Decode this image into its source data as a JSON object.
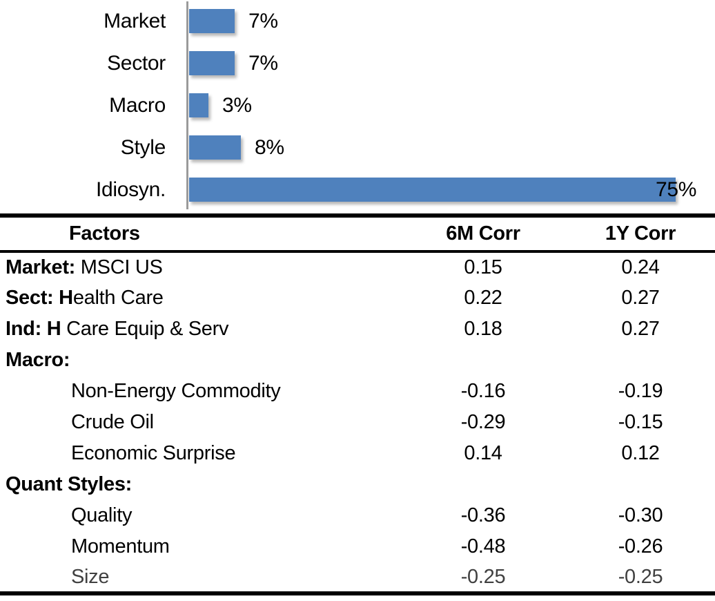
{
  "chart_data": [
    {
      "type": "bar",
      "orientation": "horizontal",
      "title": "",
      "categories": [
        "Market",
        "Sector",
        "Macro",
        "Style",
        "Idiosyn."
      ],
      "values": [
        7,
        7,
        3,
        8,
        75
      ],
      "value_labels": [
        "7%",
        "7%",
        "3%",
        "8%",
        "75%"
      ],
      "unit": "percent",
      "xlim": [
        0,
        80
      ],
      "grid": false,
      "legend": false,
      "bar_color": "#4F81BD",
      "axis_line_color": "#9A9A9A",
      "label_color": "#000000"
    },
    {
      "type": "table",
      "headers": [
        "Factors",
        "6M Corr",
        "1Y Corr"
      ],
      "rows": [
        {
          "factor_bold": "Market:",
          "factor_rest": " MSCI US",
          "indent": false,
          "muted": false,
          "corr_6m": "0.15",
          "corr_1y": "0.24"
        },
        {
          "factor_bold": "Sect: H",
          "factor_rest": "ealth Care",
          "indent": false,
          "muted": false,
          "corr_6m": "0.22",
          "corr_1y": "0.27"
        },
        {
          "factor_bold": "Ind: H",
          "factor_rest": " Care Equip & Serv",
          "indent": false,
          "muted": false,
          "corr_6m": "0.18",
          "corr_1y": "0.27"
        },
        {
          "factor_bold": "Macro:",
          "factor_rest": "",
          "indent": false,
          "muted": false,
          "corr_6m": "",
          "corr_1y": ""
        },
        {
          "factor_bold": "",
          "factor_rest": "Non-Energy Commodity",
          "indent": true,
          "muted": false,
          "corr_6m": "-0.16",
          "corr_1y": "-0.19"
        },
        {
          "factor_bold": "",
          "factor_rest": "Crude Oil",
          "indent": true,
          "muted": false,
          "corr_6m": "-0.29",
          "corr_1y": "-0.15"
        },
        {
          "factor_bold": "",
          "factor_rest": "Economic Surprise",
          "indent": true,
          "muted": false,
          "corr_6m": "0.14",
          "corr_1y": "0.12"
        },
        {
          "factor_bold": "Quant Styles:",
          "factor_rest": "",
          "indent": false,
          "muted": false,
          "corr_6m": "",
          "corr_1y": ""
        },
        {
          "factor_bold": "",
          "factor_rest": "Quality",
          "indent": true,
          "muted": false,
          "corr_6m": "-0.36",
          "corr_1y": "-0.30"
        },
        {
          "factor_bold": "",
          "factor_rest": "Momentum",
          "indent": true,
          "muted": false,
          "corr_6m": "-0.48",
          "corr_1y": "-0.26"
        },
        {
          "factor_bold": "",
          "factor_rest": "Size",
          "indent": true,
          "muted": true,
          "corr_6m": "-0.25",
          "corr_1y": "-0.25"
        }
      ]
    }
  ]
}
